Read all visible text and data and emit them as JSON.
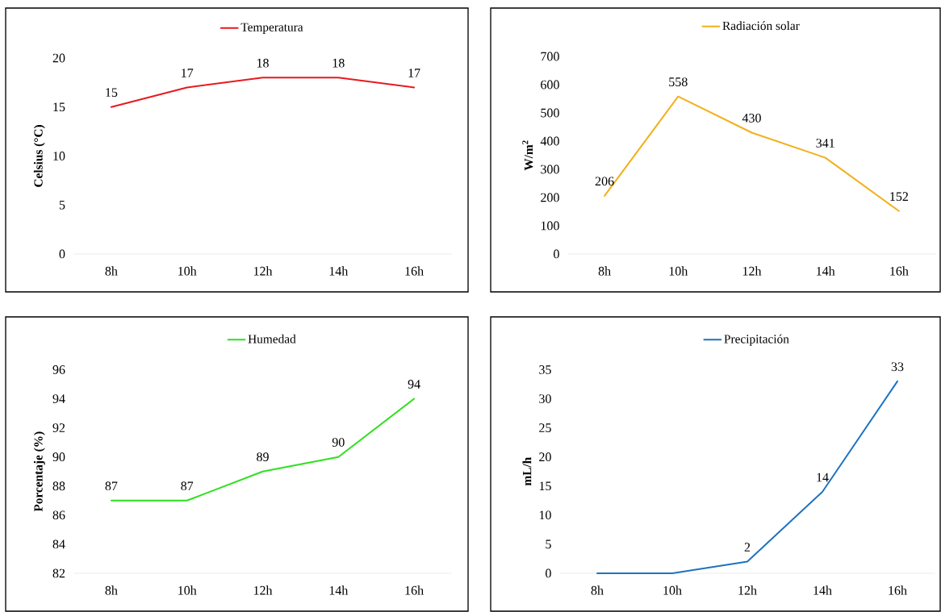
{
  "chart_data": [
    {
      "type": "line",
      "categories": [
        "8h",
        "10h",
        "12h",
        "14h",
        "16h"
      ],
      "ylabel": "Celsius (°C)",
      "ylim": [
        0,
        20
      ],
      "yticks": [
        0,
        5,
        10,
        15,
        20
      ],
      "legend": "top",
      "data_labels": true,
      "series": [
        {
          "name": "Temperatura",
          "color": "#e8191e",
          "values": [
            15,
            17,
            18,
            18,
            17
          ]
        }
      ]
    },
    {
      "type": "line",
      "categories": [
        "8h",
        "10h",
        "12h",
        "14h",
        "16h"
      ],
      "ylabel": "W/m$^{2}$",
      "ylim": [
        0,
        700
      ],
      "yticks": [
        0,
        100,
        200,
        300,
        400,
        500,
        600,
        700
      ],
      "legend": "top",
      "data_labels": true,
      "series": [
        {
          "name": "Radiación solar",
          "color": "#f2b01c",
          "values": [
            206,
            558,
            430,
            341,
            152
          ]
        }
      ]
    },
    {
      "type": "line",
      "categories": [
        "8h",
        "10h",
        "12h",
        "14h",
        "16h"
      ],
      "ylabel": "Porcentaje (%)",
      "ylim": [
        82,
        96
      ],
      "yticks": [
        82,
        84,
        86,
        88,
        90,
        92,
        94,
        96
      ],
      "legend": "top",
      "data_labels": true,
      "series": [
        {
          "name": "Humedad",
          "color": "#2ee01e",
          "values": [
            87,
            87,
            89,
            90,
            94
          ]
        }
      ]
    },
    {
      "type": "line",
      "categories": [
        "8h",
        "10h",
        "12h",
        "14h",
        "16h"
      ],
      "ylabel": "mL/h",
      "ylim": [
        0,
        35
      ],
      "yticks": [
        0,
        5,
        10,
        15,
        20,
        25,
        30,
        35
      ],
      "legend": "top",
      "series": [
        {
          "name": "Precipitación",
          "color": "#1f72c0",
          "values": [
            0,
            0,
            2,
            14,
            33
          ],
          "value_labels": [
            null,
            null,
            "2",
            "14",
            "33"
          ]
        }
      ]
    }
  ]
}
